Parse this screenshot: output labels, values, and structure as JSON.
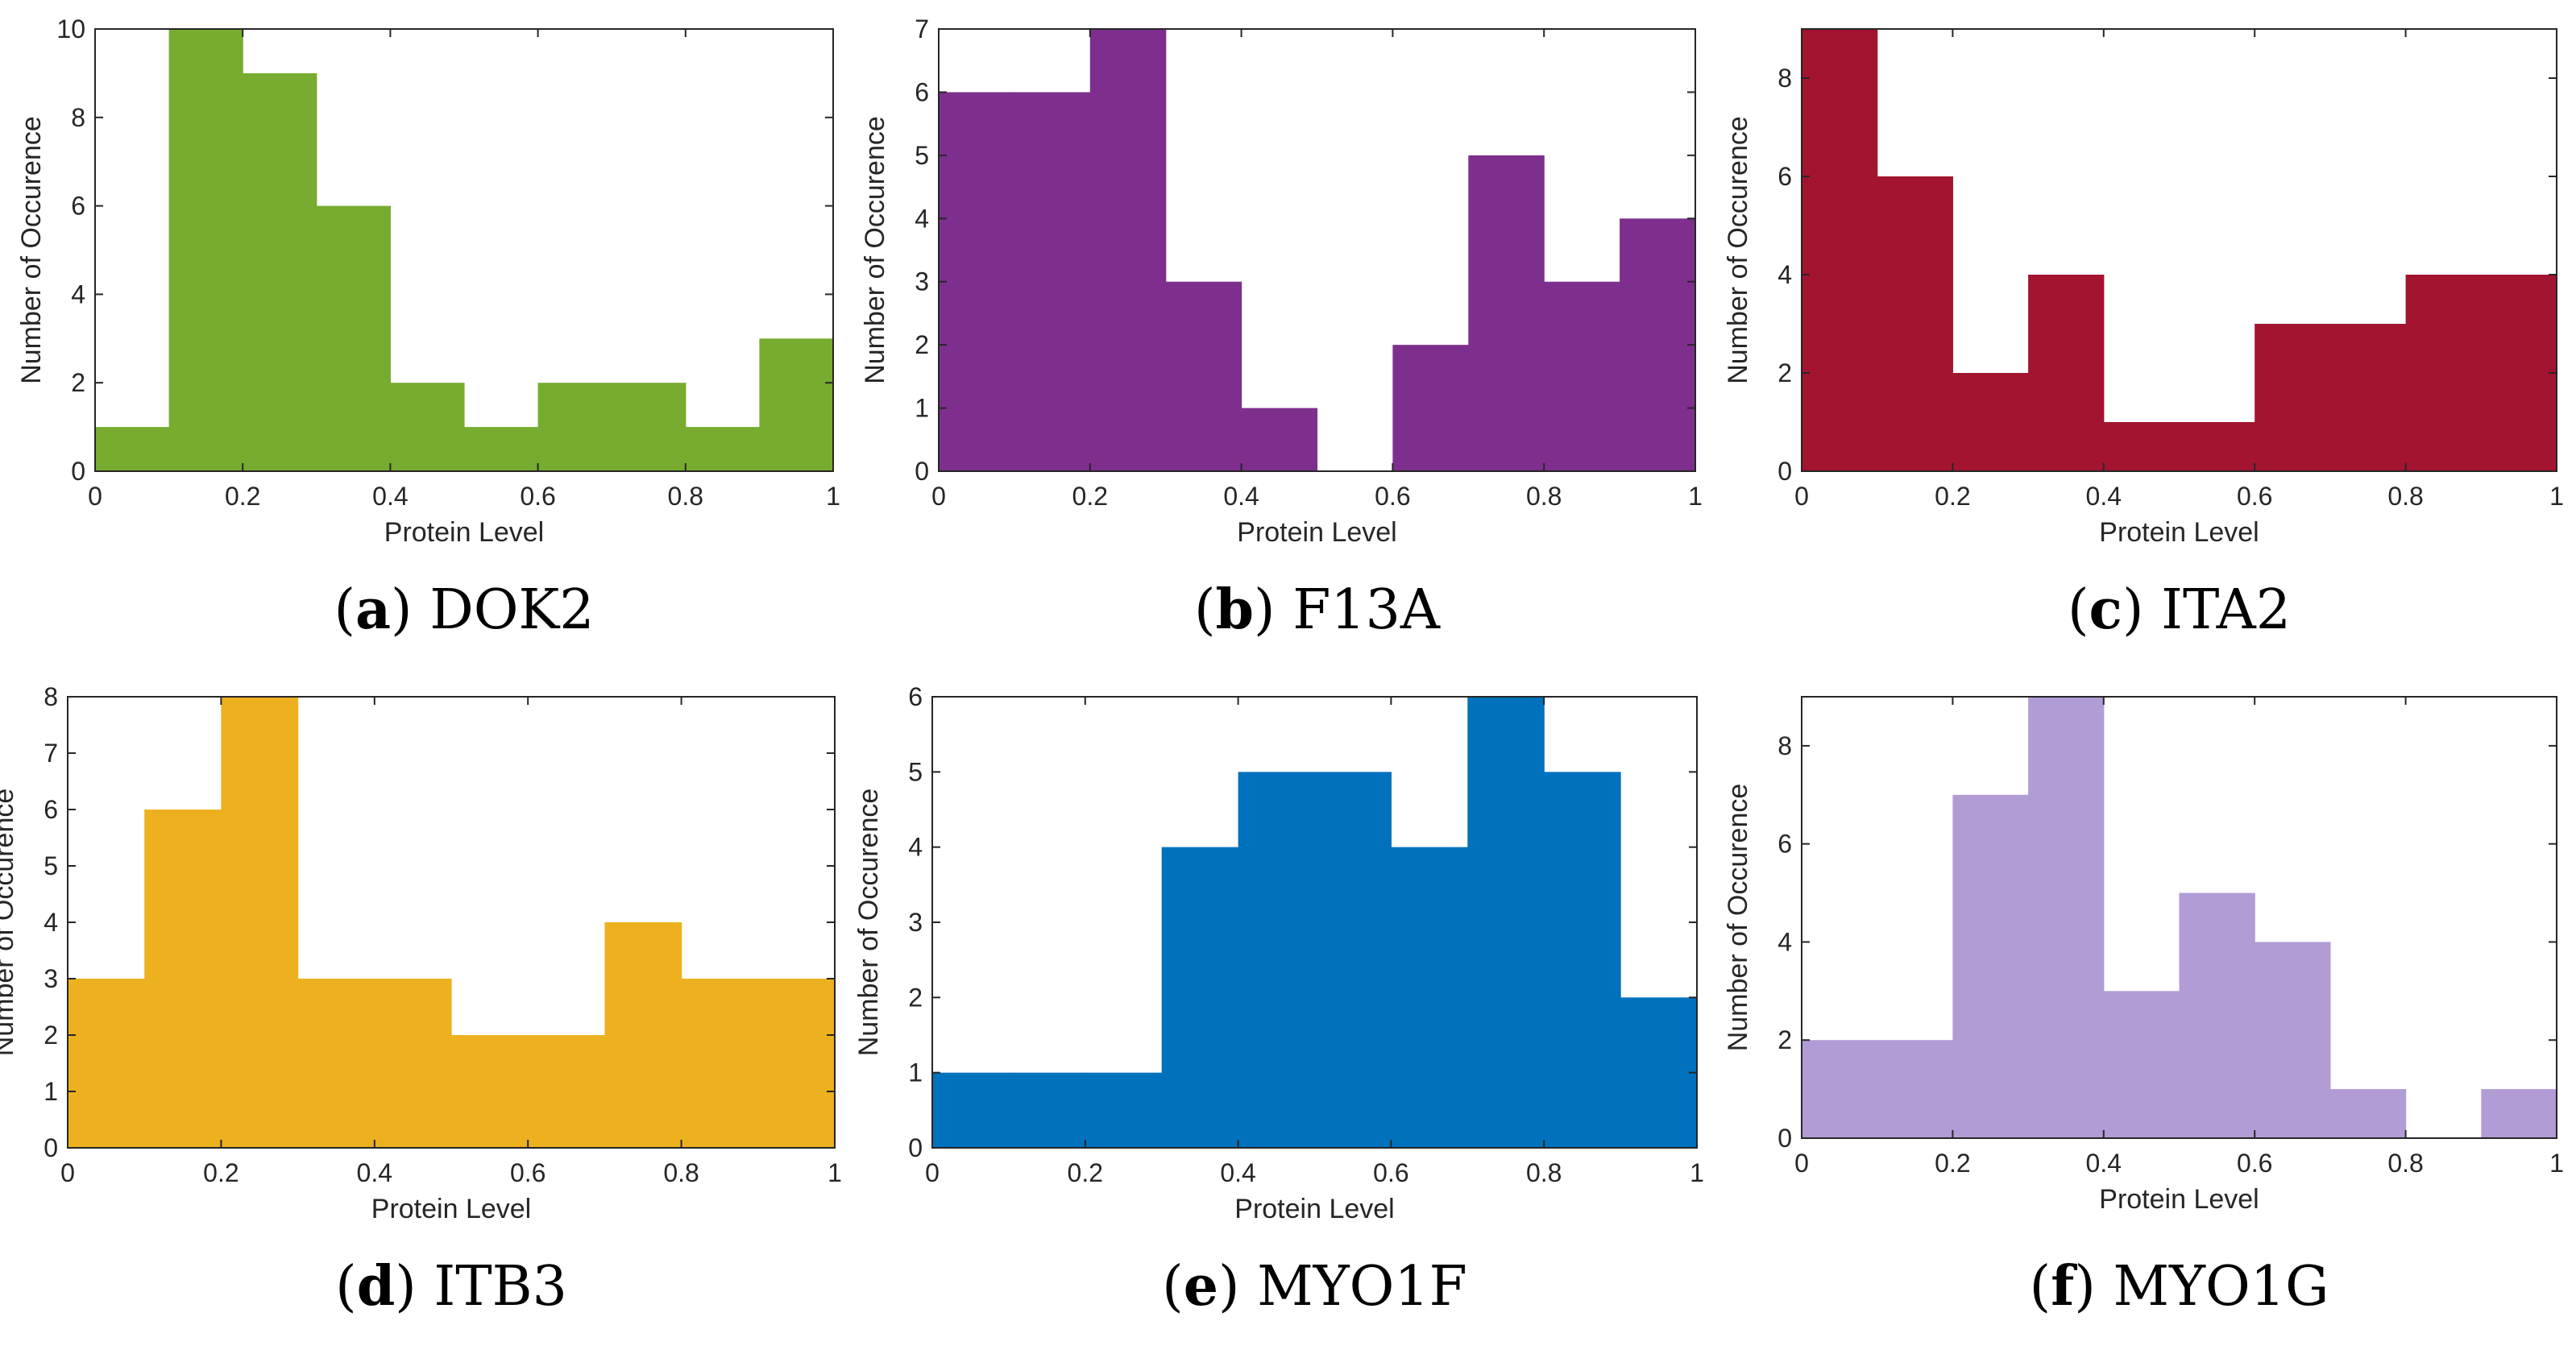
{
  "chart_data": [
    {
      "type": "bar",
      "panel_letter": "a",
      "caption_name": "DOK2",
      "bin_edges": [
        0,
        0.1,
        0.2,
        0.3,
        0.4,
        0.5,
        0.6,
        0.7,
        0.8,
        0.9,
        1
      ],
      "values": [
        1,
        10,
        9,
        6,
        2,
        1,
        2,
        2,
        1,
        3
      ],
      "color": "#77AC30",
      "xlabel": "Protein Level",
      "ylabel": "Number of Occurence",
      "xlim": [
        0,
        1
      ],
      "ylim": [
        0,
        10
      ],
      "xticks": [
        "0",
        "0.2",
        "0.4",
        "0.6",
        "0.8",
        "1"
      ],
      "yticks": [
        "0",
        "2",
        "4",
        "6",
        "8",
        "10"
      ]
    },
    {
      "type": "bar",
      "panel_letter": "b",
      "caption_name": "F13A",
      "bin_edges": [
        0,
        0.1,
        0.2,
        0.3,
        0.4,
        0.5,
        0.6,
        0.7,
        0.8,
        0.9,
        1
      ],
      "values": [
        6,
        6,
        7,
        3,
        1,
        0,
        2,
        5,
        3,
        4
      ],
      "color": "#7E2F8E",
      "xlabel": "Protein Level",
      "ylabel": "Number of Occurence",
      "xlim": [
        0,
        1
      ],
      "ylim": [
        0,
        7
      ],
      "xticks": [
        "0",
        "0.2",
        "0.4",
        "0.6",
        "0.8",
        "1"
      ],
      "yticks": [
        "0",
        "1",
        "2",
        "3",
        "4",
        "5",
        "6",
        "7"
      ]
    },
    {
      "type": "bar",
      "panel_letter": "c",
      "caption_name": "ITA2",
      "bin_edges": [
        0,
        0.1,
        0.2,
        0.3,
        0.4,
        0.5,
        0.6,
        0.7,
        0.8,
        0.9,
        1
      ],
      "values": [
        9,
        6,
        2,
        4,
        1,
        1,
        3,
        3,
        4,
        4
      ],
      "color": "#A2142F",
      "xlabel": "Protein Level",
      "ylabel": "Number of Occurence",
      "xlim": [
        0,
        1
      ],
      "ylim": [
        0,
        9
      ],
      "xticks": [
        "0",
        "0.2",
        "0.4",
        "0.6",
        "0.8",
        "1"
      ],
      "yticks": [
        "0",
        "2",
        "4",
        "6",
        "8"
      ]
    },
    {
      "type": "bar",
      "panel_letter": "d",
      "caption_name": "ITB3",
      "bin_edges": [
        0,
        0.1,
        0.2,
        0.3,
        0.4,
        0.5,
        0.6,
        0.7,
        0.8,
        0.9,
        1
      ],
      "values": [
        3,
        6,
        8,
        3,
        3,
        2,
        2,
        4,
        3,
        3
      ],
      "color": "#EDB120",
      "xlabel": "Protein Level",
      "ylabel": "Number of Occurence",
      "xlim": [
        0,
        1
      ],
      "ylim": [
        0,
        8
      ],
      "xticks": [
        "0",
        "0.2",
        "0.4",
        "0.6",
        "0.8",
        "1"
      ],
      "yticks": [
        "0",
        "1",
        "2",
        "3",
        "4",
        "5",
        "6",
        "7",
        "8"
      ]
    },
    {
      "type": "bar",
      "panel_letter": "e",
      "caption_name": "MYO1F",
      "bin_edges": [
        0,
        0.1,
        0.2,
        0.3,
        0.4,
        0.5,
        0.6,
        0.7,
        0.8,
        0.9,
        1
      ],
      "values": [
        1,
        1,
        1,
        4,
        5,
        5,
        4,
        6,
        5,
        2
      ],
      "color": "#0072BD",
      "xlabel": "Protein Level",
      "ylabel": "Number of Occurence",
      "xlim": [
        0,
        1
      ],
      "ylim": [
        0,
        6
      ],
      "xticks": [
        "0",
        "0.2",
        "0.4",
        "0.6",
        "0.8",
        "1"
      ],
      "yticks": [
        "0",
        "1",
        "2",
        "3",
        "4",
        "5",
        "6"
      ]
    },
    {
      "type": "bar",
      "panel_letter": "f",
      "caption_name": "MYO1G",
      "bin_edges": [
        0,
        0.1,
        0.2,
        0.3,
        0.4,
        0.5,
        0.6,
        0.7,
        0.8,
        0.9,
        1
      ],
      "values": [
        2,
        2,
        7,
        9,
        3,
        5,
        4,
        1,
        0,
        1
      ],
      "color": "#B19CD5",
      "xlabel": "Protein Level",
      "ylabel": "Number of Occurence",
      "xlim": [
        0,
        1
      ],
      "ylim": [
        0,
        9
      ],
      "xticks": [
        "0",
        "0.2",
        "0.4",
        "0.6",
        "0.8",
        "1"
      ],
      "yticks": [
        "0",
        "2",
        "4",
        "6",
        "8"
      ]
    }
  ]
}
